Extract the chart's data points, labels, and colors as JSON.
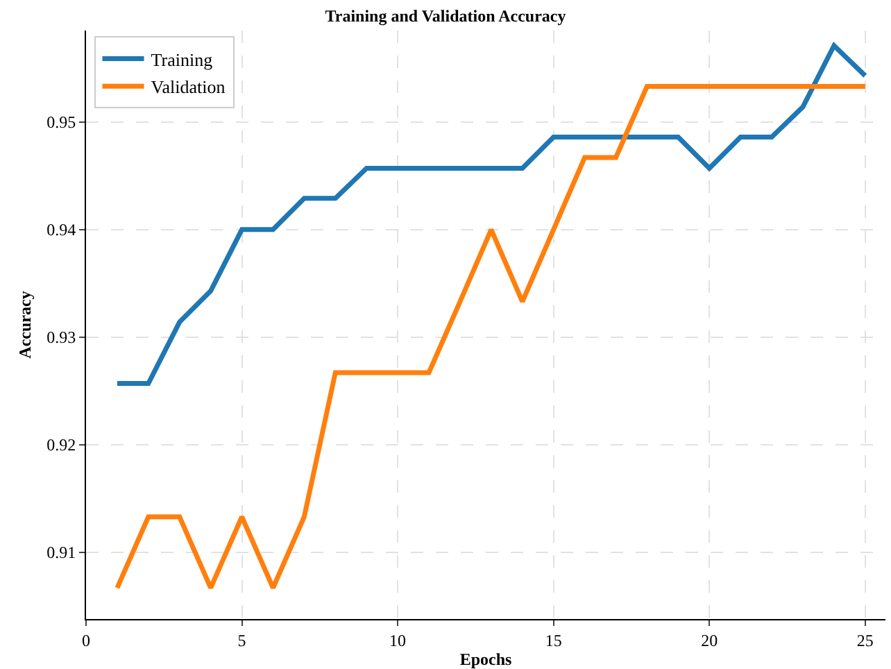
{
  "chart_data": {
    "type": "line",
    "title": "Training and Validation Accuracy",
    "xlabel": "Epochs",
    "ylabel": "Accuracy",
    "x": [
      1,
      2,
      3,
      4,
      5,
      6,
      7,
      8,
      9,
      10,
      11,
      12,
      13,
      14,
      15,
      16,
      17,
      18,
      19,
      20,
      21,
      22,
      23,
      24,
      25
    ],
    "series": [
      {
        "name": "Training",
        "color": "#1f77b4",
        "values": [
          0.9257,
          0.9257,
          0.9314,
          0.9343,
          0.94,
          0.94,
          0.9429,
          0.9429,
          0.9457,
          0.9457,
          0.9457,
          0.9457,
          0.9457,
          0.9457,
          0.9486,
          0.9486,
          0.9486,
          0.9486,
          0.9486,
          0.9457,
          0.9486,
          0.9486,
          0.9514,
          0.9571,
          0.9543
        ]
      },
      {
        "name": "Validation",
        "color": "#ff7f0e",
        "values": [
          0.9067,
          0.9133,
          0.9133,
          0.9067,
          0.9133,
          0.9067,
          0.9133,
          0.9267,
          0.9267,
          0.9267,
          0.9267,
          0.9333,
          0.94,
          0.9333,
          0.94,
          0.9467,
          0.9467,
          0.9533,
          0.9533,
          0.9533,
          0.9533,
          0.9533,
          0.9533,
          0.9533,
          0.9533
        ]
      }
    ],
    "xlim": [
      0,
      25.65
    ],
    "xticks": [
      0,
      5,
      10,
      15,
      20,
      25
    ],
    "ylim": [
      0.9038,
      0.9585
    ],
    "yticks": [
      0.91,
      0.92,
      0.93,
      0.94,
      0.95
    ],
    "grid": true,
    "legend": "top left",
    "marker": "none",
    "line_style": "solid"
  }
}
